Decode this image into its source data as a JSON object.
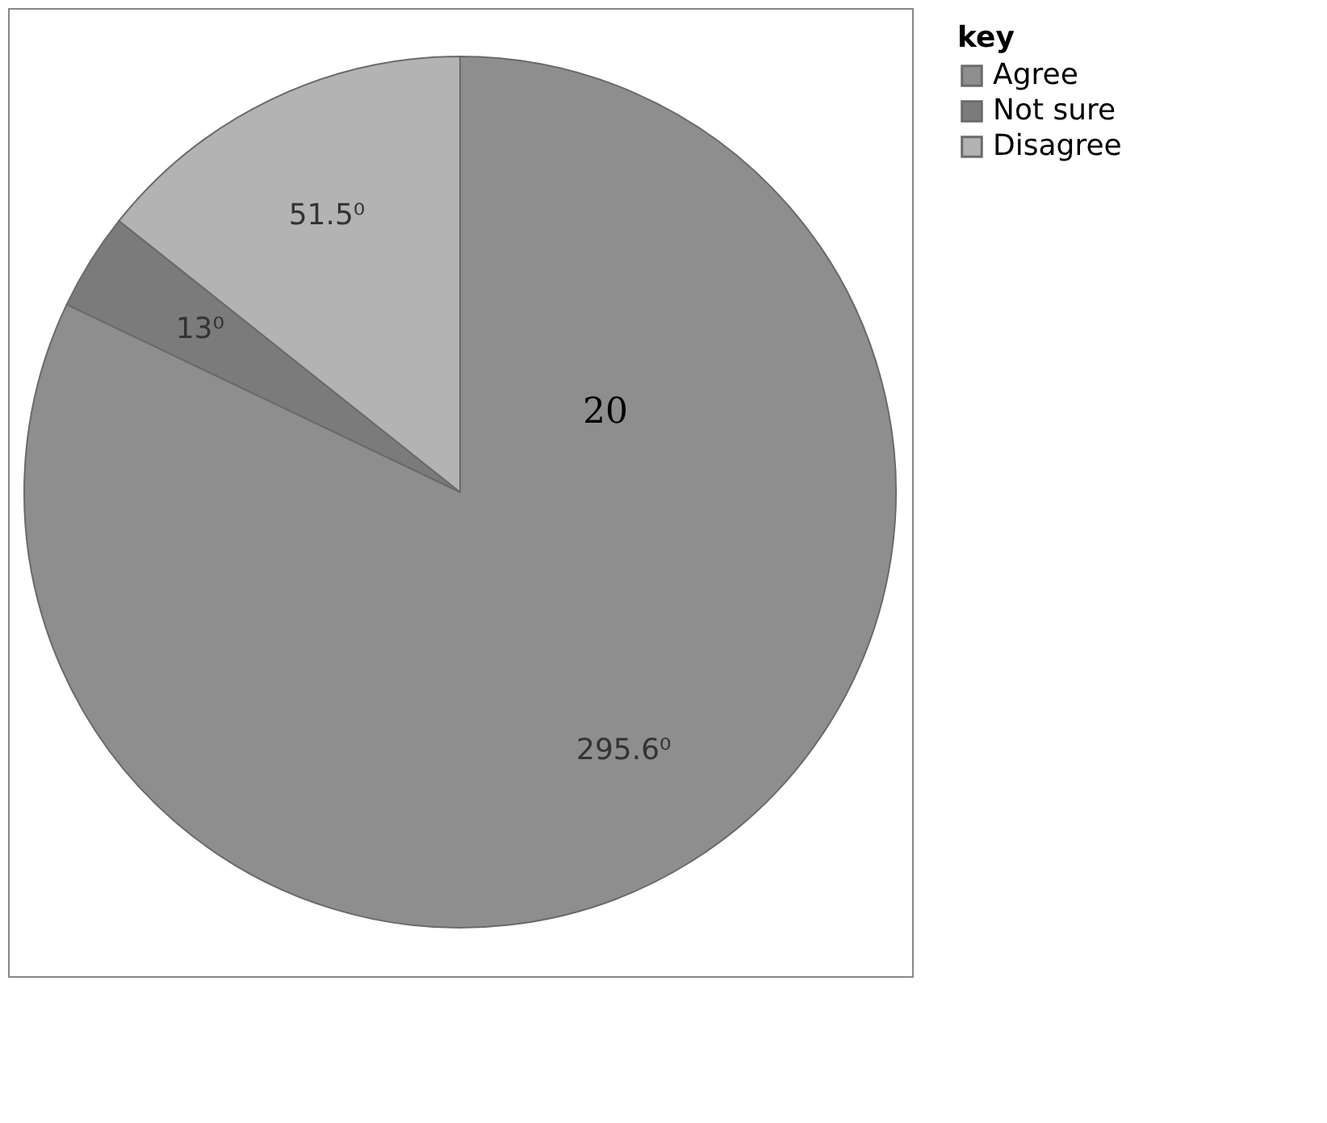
{
  "chart_data": {
    "type": "pie",
    "categories": [
      "Agree",
      "Not sure",
      "Disagree"
    ],
    "values": [
      295.6,
      13,
      51.5
    ],
    "value_labels": [
      "295.6⁰",
      "13⁰",
      "51.5⁰"
    ],
    "colors": [
      "#8e8e8e",
      "#7b7b7b",
      "#b3b3b3"
    ],
    "legend_title": "key",
    "legend": "right",
    "annotations": [
      "20"
    ]
  }
}
